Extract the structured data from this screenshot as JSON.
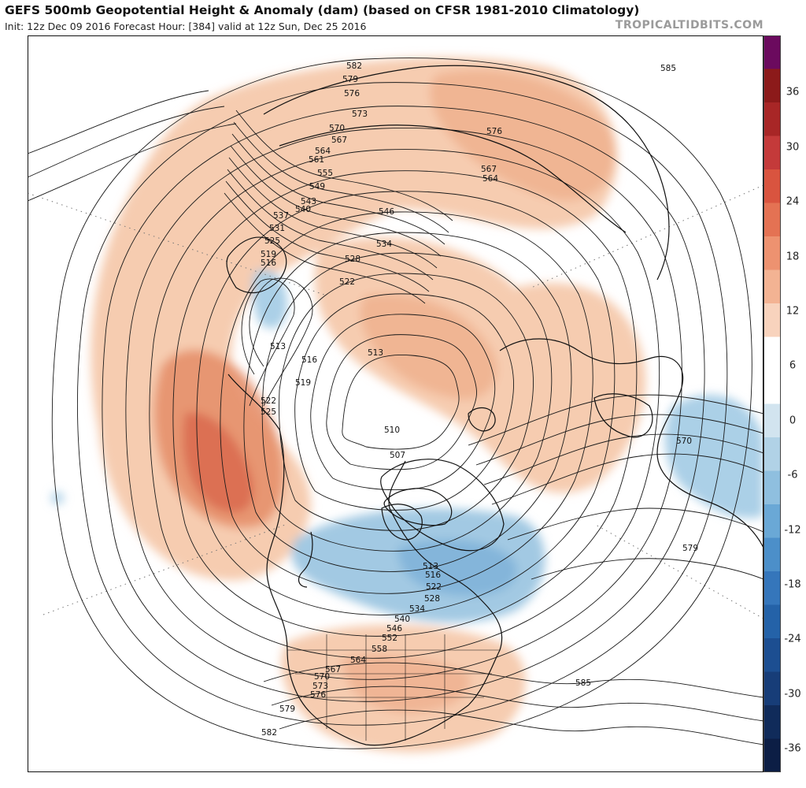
{
  "header": {
    "title": "GEFS 500mb Geopotential Height & Anomaly (dam) (based on CFSR 1981-2010 Climatology)",
    "subtitle": "Init: 12z Dec 09 2016   Forecast Hour: [384]   valid at 12z Sun, Dec 25 2016",
    "watermark": "TROPICALTIDBITS.COM"
  },
  "map": {
    "projection": "north-polar-stereographic",
    "contour_labels": [
      "582",
      "579",
      "576",
      "573",
      "570",
      "567",
      "564",
      "561",
      "555",
      "549",
      "543",
      "540",
      "537",
      "531",
      "525",
      "519",
      "516",
      "513",
      "516",
      "519",
      "522",
      "525",
      "546",
      "534",
      "528",
      "522",
      "513",
      "510",
      "507",
      "576",
      "567",
      "564",
      "585",
      "570",
      "579",
      "513",
      "516",
      "522",
      "528",
      "534",
      "540",
      "546",
      "552",
      "558",
      "564",
      "567",
      "570",
      "573",
      "576",
      "579",
      "582",
      "585"
    ],
    "anomaly_features": [
      {
        "region": "eastern Pacific / Alaska",
        "sign": "positive",
        "peak_dam": 18
      },
      {
        "region": "Eurasia / Siberia",
        "sign": "positive",
        "peak_dam": 12
      },
      {
        "region": "Europe",
        "sign": "positive",
        "peak_dam": 12
      },
      {
        "region": "eastern United States",
        "sign": "positive",
        "peak_dam": 12
      },
      {
        "region": "eastern Canada / Hudson Bay",
        "sign": "negative",
        "peak_dam": -12
      },
      {
        "region": "northwest Africa / Iberia",
        "sign": "negative",
        "peak_dam": -9
      },
      {
        "region": "central Siberia",
        "sign": "negative",
        "peak_dam": -6
      }
    ]
  },
  "colorbar": {
    "labels": [
      "36",
      "30",
      "24",
      "18",
      "12",
      "6",
      "0",
      "-6",
      "-12",
      "-18",
      "-24",
      "-30",
      "-36"
    ],
    "colors": [
      "#6b0a5e",
      "#8c1a1a",
      "#a82626",
      "#c43a3a",
      "#d9543f",
      "#e47253",
      "#ed9270",
      "#f3b393",
      "#f8d3bd",
      "#ffffff",
      "#ffffff",
      "#d2e4ef",
      "#b1d2e6",
      "#8fbfdf",
      "#6aa8d6",
      "#4c8fc9",
      "#3576bb",
      "#2462a8",
      "#1c4e91",
      "#173d78",
      "#102b5a",
      "#0c1e45"
    ]
  }
}
